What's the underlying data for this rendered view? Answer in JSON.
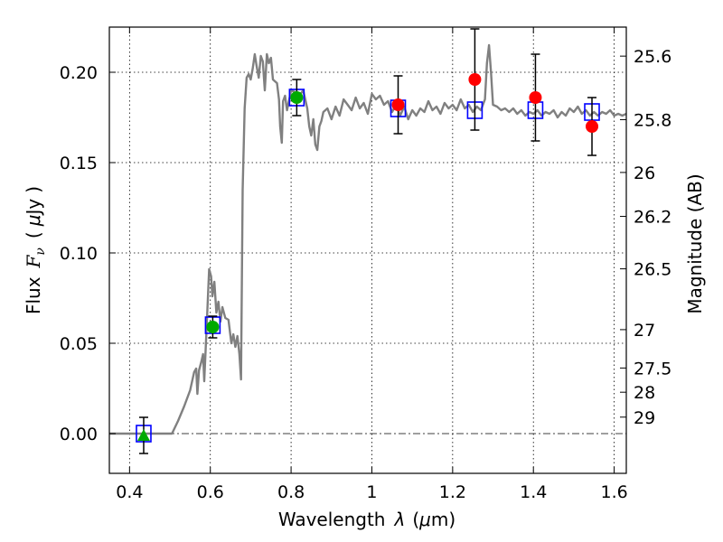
{
  "chart_data": {
    "type": "scatter",
    "xlabel_text": "Wavelength",
    "xlabel_symbol": "λ",
    "xlabel_unit_open": "(",
    "xlabel_unit_mu": "μ",
    "xlabel_unit_rest": "m)",
    "ylabel_text": "Flux",
    "ylabel_symbol_F": "F",
    "ylabel_symbol_sub": "ν",
    "ylabel_unit_open": "(",
    "ylabel_unit_mu": "μ",
    "ylabel_unit_rest": "Jy",
    "ylabel_unit_close": ")",
    "y2label": "Magnitude (AB)",
    "xlim": [
      0.35,
      1.63
    ],
    "ylim": [
      -0.022,
      0.225
    ],
    "grid": true,
    "x_ticks": [
      {
        "v": 0.4,
        "label": "0.4"
      },
      {
        "v": 0.6,
        "label": "0.6"
      },
      {
        "v": 0.8,
        "label": "0.8"
      },
      {
        "v": 1.0,
        "label": "1"
      },
      {
        "v": 1.2,
        "label": "1.2"
      },
      {
        "v": 1.4,
        "label": "1.4"
      },
      {
        "v": 1.6,
        "label": "1.6"
      }
    ],
    "y_ticks": [
      {
        "v": 0.0,
        "label": "0.00"
      },
      {
        "v": 0.05,
        "label": "0.05"
      },
      {
        "v": 0.1,
        "label": "0.10"
      },
      {
        "v": 0.15,
        "label": "0.15"
      },
      {
        "v": 0.2,
        "label": "0.20"
      }
    ],
    "mag_ticks": [
      {
        "mag": 25.6,
        "label": "25.6"
      },
      {
        "mag": 25.8,
        "label": "25.8"
      },
      {
        "mag": 26.0,
        "label": "26"
      },
      {
        "mag": 26.2,
        "label": "26.2"
      },
      {
        "mag": 26.5,
        "label": "26.5"
      },
      {
        "mag": 27.0,
        "label": "27"
      },
      {
        "mag": 27.5,
        "label": "27.5"
      },
      {
        "mag": 28.0,
        "label": "28"
      },
      {
        "mag": 29.0,
        "label": "29"
      }
    ],
    "spectrum": {
      "color": "#808080",
      "points": [
        [
          0.35,
          0.0
        ],
        [
          0.505,
          0.0
        ],
        [
          0.52,
          0.007
        ],
        [
          0.535,
          0.015
        ],
        [
          0.55,
          0.024
        ],
        [
          0.56,
          0.034
        ],
        [
          0.565,
          0.036
        ],
        [
          0.568,
          0.022
        ],
        [
          0.572,
          0.035
        ],
        [
          0.578,
          0.04
        ],
        [
          0.582,
          0.044
        ],
        [
          0.585,
          0.029
        ],
        [
          0.59,
          0.055
        ],
        [
          0.593,
          0.07
        ],
        [
          0.597,
          0.091
        ],
        [
          0.602,
          0.087
        ],
        [
          0.605,
          0.076
        ],
        [
          0.61,
          0.084
        ],
        [
          0.615,
          0.067
        ],
        [
          0.62,
          0.073
        ],
        [
          0.625,
          0.062
        ],
        [
          0.63,
          0.07
        ],
        [
          0.637,
          0.064
        ],
        [
          0.645,
          0.063
        ],
        [
          0.652,
          0.05
        ],
        [
          0.657,
          0.055
        ],
        [
          0.662,
          0.048
        ],
        [
          0.667,
          0.054
        ],
        [
          0.672,
          0.044
        ],
        [
          0.676,
          0.03
        ],
        [
          0.68,
          0.135
        ],
        [
          0.685,
          0.18
        ],
        [
          0.69,
          0.197
        ],
        [
          0.695,
          0.199
        ],
        [
          0.7,
          0.196
        ],
        [
          0.705,
          0.202
        ],
        [
          0.71,
          0.21
        ],
        [
          0.715,
          0.203
        ],
        [
          0.72,
          0.197
        ],
        [
          0.725,
          0.209
        ],
        [
          0.73,
          0.206
        ],
        [
          0.735,
          0.19
        ],
        [
          0.74,
          0.21
        ],
        [
          0.745,
          0.205
        ],
        [
          0.75,
          0.208
        ],
        [
          0.755,
          0.196
        ],
        [
          0.76,
          0.195
        ],
        [
          0.765,
          0.194
        ],
        [
          0.77,
          0.185
        ],
        [
          0.773,
          0.17
        ],
        [
          0.777,
          0.161
        ],
        [
          0.78,
          0.184
        ],
        [
          0.785,
          0.187
        ],
        [
          0.79,
          0.179
        ],
        [
          0.8,
          0.19
        ],
        [
          0.81,
          0.189
        ],
        [
          0.82,
          0.187
        ],
        [
          0.83,
          0.19
        ],
        [
          0.84,
          0.18
        ],
        [
          0.845,
          0.17
        ],
        [
          0.85,
          0.165
        ],
        [
          0.855,
          0.174
        ],
        [
          0.86,
          0.16
        ],
        [
          0.865,
          0.157
        ],
        [
          0.87,
          0.17
        ],
        [
          0.875,
          0.173
        ],
        [
          0.88,
          0.178
        ],
        [
          0.89,
          0.18
        ],
        [
          0.9,
          0.174
        ],
        [
          0.91,
          0.181
        ],
        [
          0.92,
          0.176
        ],
        [
          0.93,
          0.185
        ],
        [
          0.94,
          0.182
        ],
        [
          0.95,
          0.179
        ],
        [
          0.96,
          0.186
        ],
        [
          0.97,
          0.18
        ],
        [
          0.98,
          0.183
        ],
        [
          0.99,
          0.177
        ],
        [
          1.0,
          0.188
        ],
        [
          1.01,
          0.185
        ],
        [
          1.02,
          0.187
        ],
        [
          1.03,
          0.182
        ],
        [
          1.04,
          0.184
        ],
        [
          1.05,
          0.178
        ],
        [
          1.06,
          0.182
        ],
        [
          1.07,
          0.176
        ],
        [
          1.08,
          0.181
        ],
        [
          1.09,
          0.174
        ],
        [
          1.1,
          0.179
        ],
        [
          1.11,
          0.176
        ],
        [
          1.12,
          0.18
        ],
        [
          1.13,
          0.178
        ],
        [
          1.14,
          0.184
        ],
        [
          1.15,
          0.179
        ],
        [
          1.16,
          0.181
        ],
        [
          1.17,
          0.177
        ],
        [
          1.18,
          0.183
        ],
        [
          1.19,
          0.18
        ],
        [
          1.2,
          0.182
        ],
        [
          1.21,
          0.179
        ],
        [
          1.22,
          0.185
        ],
        [
          1.23,
          0.18
        ],
        [
          1.24,
          0.182
        ],
        [
          1.25,
          0.178
        ],
        [
          1.26,
          0.181
        ],
        [
          1.27,
          0.179
        ],
        [
          1.28,
          0.185
        ],
        [
          1.285,
          0.205
        ],
        [
          1.29,
          0.215
        ],
        [
          1.295,
          0.2
        ],
        [
          1.3,
          0.182
        ],
        [
          1.31,
          0.181
        ],
        [
          1.32,
          0.179
        ],
        [
          1.33,
          0.18
        ],
        [
          1.34,
          0.178
        ],
        [
          1.35,
          0.18
        ],
        [
          1.36,
          0.177
        ],
        [
          1.37,
          0.179
        ],
        [
          1.38,
          0.176
        ],
        [
          1.39,
          0.178
        ],
        [
          1.4,
          0.177
        ],
        [
          1.41,
          0.179
        ],
        [
          1.42,
          0.176
        ],
        [
          1.43,
          0.178
        ],
        [
          1.44,
          0.177
        ],
        [
          1.45,
          0.179
        ],
        [
          1.46,
          0.175
        ],
        [
          1.47,
          0.178
        ],
        [
          1.48,
          0.176
        ],
        [
          1.49,
          0.18
        ],
        [
          1.5,
          0.178
        ],
        [
          1.51,
          0.181
        ],
        [
          1.52,
          0.177
        ],
        [
          1.53,
          0.179
        ],
        [
          1.54,
          0.176
        ],
        [
          1.55,
          0.178
        ],
        [
          1.56,
          0.176
        ],
        [
          1.57,
          0.178
        ],
        [
          1.58,
          0.177
        ],
        [
          1.59,
          0.179
        ],
        [
          1.6,
          0.176
        ],
        [
          1.61,
          0.177
        ],
        [
          1.62,
          0.176
        ],
        [
          1.63,
          0.177
        ]
      ]
    },
    "series": [
      {
        "marker": "square",
        "color": "#0000ff",
        "points": [
          {
            "x": 0.435,
            "y": 0.0
          },
          {
            "x": 0.606,
            "y": 0.06
          },
          {
            "x": 0.814,
            "y": 0.186
          },
          {
            "x": 1.065,
            "y": 0.18
          },
          {
            "x": 1.255,
            "y": 0.179
          },
          {
            "x": 1.405,
            "y": 0.179
          },
          {
            "x": 1.545,
            "y": 0.178
          }
        ]
      },
      {
        "marker": "circle",
        "color": "#00aa00",
        "points": [
          {
            "x": 0.606,
            "y": 0.059,
            "err": 0.006
          },
          {
            "x": 0.814,
            "y": 0.186,
            "err": 0.01
          }
        ]
      },
      {
        "marker": "triangle",
        "color": "#00aa00",
        "points": [
          {
            "x": 0.435,
            "y": -0.001,
            "err": 0.01
          }
        ]
      },
      {
        "marker": "circle",
        "color": "#ff0000",
        "points": [
          {
            "x": 1.065,
            "y": 0.182,
            "err": 0.016
          },
          {
            "x": 1.255,
            "y": 0.196,
            "err": 0.028
          },
          {
            "x": 1.405,
            "y": 0.186,
            "err": 0.024
          },
          {
            "x": 1.545,
            "y": 0.17,
            "err": 0.016
          }
        ]
      }
    ]
  }
}
